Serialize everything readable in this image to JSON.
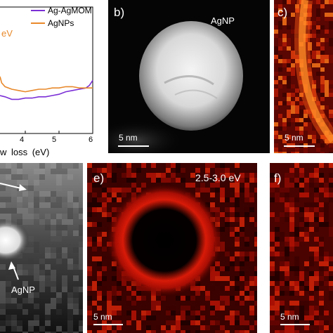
{
  "colors": {
    "ag_agmom": "#7b2fd6",
    "agnps": "#e8892b",
    "ev_text": "#e8892b",
    "ab_panel": "#000000",
    "heat_dark": "#3a0000",
    "heat_bright": "#ff2a0a"
  },
  "panel_a": {
    "chart_data": {
      "type": "line",
      "xlabel_visible": "w loss (eV)",
      "x_ticks": [
        "4",
        "5",
        "6"
      ],
      "partial_text": "eV",
      "xlim": [
        3.25,
        6
      ],
      "legend_position": "top-right",
      "series": [
        {
          "name": "Ag-AgMOM",
          "color": "#7b2fd6",
          "x": [
            3.25,
            3.4,
            3.6,
            3.8,
            4.0,
            4.2,
            4.4,
            4.6,
            4.8,
            5.0,
            5.2,
            5.4,
            5.6,
            5.8,
            5.9,
            6.0
          ],
          "y": [
            0.3,
            0.29,
            0.27,
            0.27,
            0.28,
            0.28,
            0.29,
            0.29,
            0.3,
            0.31,
            0.33,
            0.34,
            0.35,
            0.36,
            0.38,
            0.42
          ]
        },
        {
          "name": "AgNPs",
          "color": "#e8892b",
          "x": [
            3.25,
            3.3,
            3.4,
            3.6,
            3.8,
            4.0,
            4.2,
            4.4,
            4.6,
            4.8,
            5.0,
            5.2,
            5.4,
            5.6,
            5.8,
            6.0
          ],
          "y": [
            0.45,
            0.4,
            0.37,
            0.35,
            0.34,
            0.33,
            0.34,
            0.35,
            0.35,
            0.36,
            0.36,
            0.37,
            0.37,
            0.36,
            0.36,
            0.36
          ]
        }
      ]
    }
  },
  "panel_b": {
    "label": "b)",
    "particle_label": "AgNP",
    "scale": "5 nm"
  },
  "panel_c": {
    "label": "c)",
    "scale": "5 nm"
  },
  "panel_d": {
    "particle_label": "AgNP"
  },
  "panel_e": {
    "label": "e)",
    "energy": "2.5-3.0 eV",
    "scale": "5 nm"
  },
  "panel_f": {
    "label": "f)",
    "scale": "5 nm"
  }
}
